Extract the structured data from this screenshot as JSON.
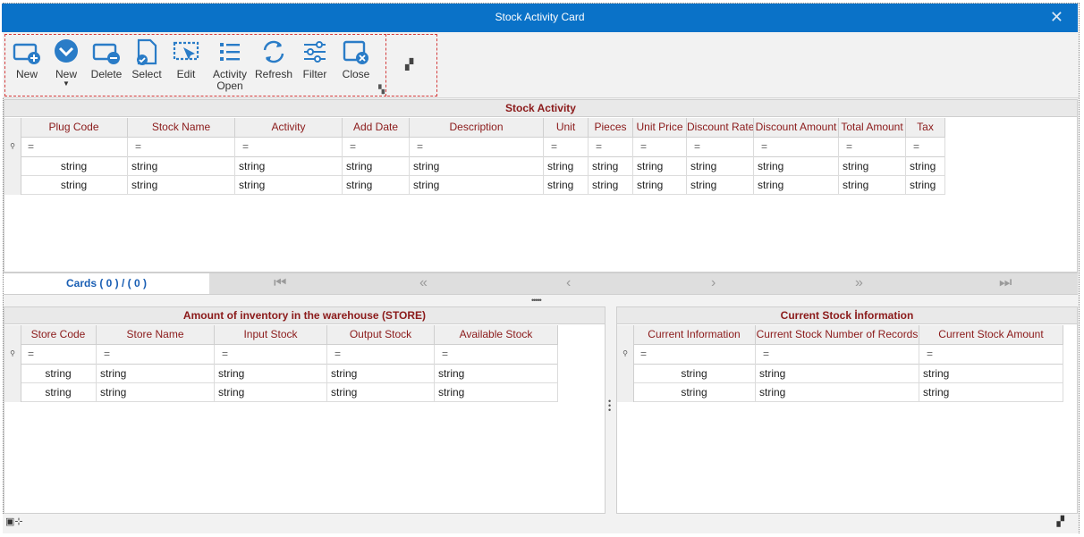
{
  "window": {
    "title": "Stock Activity Card",
    "close_glyph": "✕"
  },
  "toolbar": {
    "buttons": [
      {
        "label": "New",
        "icon": "new-card-icon"
      },
      {
        "label": "New",
        "icon": "dropdown-circle-icon"
      },
      {
        "label": "Delete",
        "icon": "delete-card-icon"
      },
      {
        "label": "Select",
        "icon": "select-document-icon"
      },
      {
        "label": "Edit",
        "icon": "edit-icon"
      },
      {
        "label": "Activity Open",
        "icon": "list-icon"
      },
      {
        "label": "Refresh",
        "icon": "refresh-icon"
      },
      {
        "label": "Filter",
        "icon": "filter-sliders-icon"
      },
      {
        "label": "Close",
        "icon": "close-window-icon"
      }
    ],
    "colors": {
      "icon": "#2a7cc7"
    }
  },
  "stock_activity": {
    "title": "Stock Activity",
    "columns": [
      "Plug Code",
      "Stock Name",
      "Activity",
      "Add Date",
      "Description",
      "Unit",
      "Pieces",
      "Unit Price",
      "Discount Rate",
      "Discount Amount",
      "Total Amount",
      "Tax"
    ],
    "filter_glyph": "=",
    "rows": [
      [
        "string",
        "string",
        "string",
        "string",
        "string",
        "string",
        "string",
        "string",
        "string",
        "string",
        "string",
        "string"
      ],
      [
        "string",
        "string",
        "string",
        "string",
        "string",
        "string",
        "string",
        "string",
        "string",
        "string",
        "string",
        "string"
      ]
    ]
  },
  "pager": {
    "cards_label": "Cards ( 0 ) / ( 0 )"
  },
  "warehouse": {
    "title": "Amount of inventory in the warehouse (STORE)",
    "columns": [
      "Store Code",
      "Store Name",
      "Input Stock",
      "Output Stock",
      "Available Stock"
    ],
    "rows": [
      [
        "string",
        "string",
        "string",
        "string",
        "string"
      ],
      [
        "string",
        "string",
        "string",
        "string",
        "string"
      ]
    ]
  },
  "current_stock": {
    "title": "Current Stock İnformation",
    "columns": [
      "Current Information",
      "Current Stock Number of Records",
      "Current Stock Amount"
    ],
    "rows": [
      [
        "string",
        "string",
        "string"
      ],
      [
        "string",
        "string",
        "string"
      ]
    ]
  },
  "colors": {
    "title_bar": "#0a72c8",
    "header_text": "#8b1a1a",
    "pager_text": "#1a5fb4",
    "dashed_border": "#d43c3c"
  }
}
